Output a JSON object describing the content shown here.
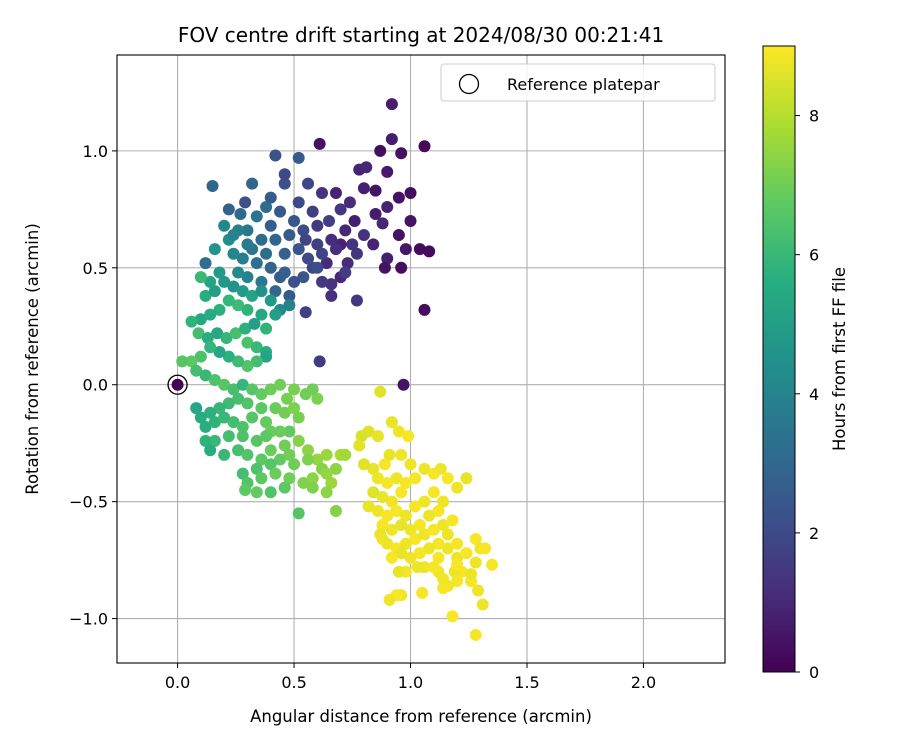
{
  "chart_data": {
    "type": "scatter",
    "title": "FOV centre drift starting at 2024/08/30 00:21:41",
    "xlabel": "Angular distance from reference (arcmin)",
    "ylabel": "Rotation from reference (arcmin)",
    "xlim": [
      -0.26,
      2.35
    ],
    "ylim": [
      -1.19,
      1.41
    ],
    "x_ticks": [
      0.0,
      0.5,
      1.0,
      1.5,
      2.0
    ],
    "x_tick_labels": [
      "0.0",
      "0.5",
      "1.0",
      "1.5",
      "2.0"
    ],
    "y_ticks": [
      -1.0,
      -0.5,
      0.0,
      0.5,
      1.0
    ],
    "y_tick_labels": [
      "−1.0",
      "−0.5",
      "0.0",
      "0.5",
      "1.0"
    ],
    "grid": true,
    "legend": {
      "placement": "top-right",
      "entries": [
        "Reference platepar"
      ]
    },
    "reference_point": {
      "x": 0.0,
      "y": 0.0
    },
    "colorbar": {
      "label": "Hours from first FF file",
      "colormap": "viridis",
      "range": [
        0,
        9
      ],
      "ticks": [
        0,
        2,
        4,
        6,
        8
      ],
      "tick_labels": [
        "0",
        "2",
        "4",
        "6",
        "8"
      ]
    },
    "points": [
      [
        0.0,
        0.0,
        0.05
      ],
      [
        0.92,
        1.2,
        0.75
      ],
      [
        0.61,
        1.03,
        0.45
      ],
      [
        0.92,
        1.05,
        0.7
      ],
      [
        1.06,
        1.02,
        0.2
      ],
      [
        0.87,
        1.0,
        0.3
      ],
      [
        0.96,
        0.99,
        0.4
      ],
      [
        0.78,
        0.92,
        0.9
      ],
      [
        0.81,
        0.93,
        1.0
      ],
      [
        0.9,
        0.91,
        0.6
      ],
      [
        1.0,
        0.82,
        0.35
      ],
      [
        0.85,
        0.83,
        0.5
      ],
      [
        0.8,
        0.84,
        0.8
      ],
      [
        0.95,
        0.8,
        0.45
      ],
      [
        0.9,
        0.76,
        0.9
      ],
      [
        0.85,
        0.73,
        0.7
      ],
      [
        0.88,
        0.69,
        1.0
      ],
      [
        1.0,
        0.7,
        0.5
      ],
      [
        0.95,
        0.64,
        0.4
      ],
      [
        0.98,
        0.58,
        0.6
      ],
      [
        1.04,
        0.58,
        0.3
      ],
      [
        1.08,
        0.57,
        0.25
      ],
      [
        0.9,
        0.54,
        0.8
      ],
      [
        0.96,
        0.5,
        0.35
      ],
      [
        0.89,
        0.5,
        0.45
      ],
      [
        1.06,
        0.32,
        0.3
      ],
      [
        0.97,
        0.0,
        0.5
      ],
      [
        0.61,
        0.1,
        1.6
      ],
      [
        0.66,
        0.38,
        1.2
      ],
      [
        0.77,
        0.36,
        1.5
      ],
      [
        0.55,
        0.31,
        1.7
      ],
      [
        0.73,
        0.52,
        1.1
      ],
      [
        0.7,
        0.6,
        0.9
      ],
      [
        0.77,
        0.56,
        1.4
      ],
      [
        0.7,
        0.46,
        1.0
      ],
      [
        0.66,
        0.43,
        1.3
      ],
      [
        0.62,
        0.44,
        1.5
      ],
      [
        0.58,
        0.5,
        1.8
      ],
      [
        0.64,
        0.52,
        1.1
      ],
      [
        0.66,
        0.62,
        1.2
      ],
      [
        0.72,
        0.66,
        1.0
      ],
      [
        0.76,
        0.7,
        0.8
      ],
      [
        0.8,
        0.64,
        1.3
      ],
      [
        0.84,
        0.6,
        0.9
      ],
      [
        0.74,
        0.78,
        1.1
      ],
      [
        0.68,
        0.82,
        0.9
      ],
      [
        0.62,
        0.82,
        1.3
      ],
      [
        0.56,
        0.86,
        1.9
      ],
      [
        0.46,
        0.86,
        2.2
      ],
      [
        0.52,
        0.78,
        2.0
      ],
      [
        0.58,
        0.74,
        1.7
      ],
      [
        0.6,
        0.68,
        1.5
      ],
      [
        0.54,
        0.66,
        2.1
      ],
      [
        0.5,
        0.7,
        2.4
      ],
      [
        0.48,
        0.64,
        2.6
      ],
      [
        0.52,
        0.58,
        2.3
      ],
      [
        0.46,
        0.56,
        2.8
      ],
      [
        0.42,
        0.62,
        3.0
      ],
      [
        0.4,
        0.68,
        2.7
      ],
      [
        0.44,
        0.74,
        2.5
      ],
      [
        0.38,
        0.76,
        3.2
      ],
      [
        0.34,
        0.72,
        3.4
      ],
      [
        0.3,
        0.66,
        3.6
      ],
      [
        0.36,
        0.62,
        3.1
      ],
      [
        0.32,
        0.58,
        3.5
      ],
      [
        0.28,
        0.54,
        3.8
      ],
      [
        0.34,
        0.52,
        3.3
      ],
      [
        0.4,
        0.5,
        2.9
      ],
      [
        0.44,
        0.46,
        2.6
      ],
      [
        0.5,
        0.44,
        2.2
      ],
      [
        0.48,
        0.38,
        2.5
      ],
      [
        0.42,
        0.4,
        3.0
      ],
      [
        0.36,
        0.44,
        3.6
      ],
      [
        0.3,
        0.46,
        4.0
      ],
      [
        0.26,
        0.48,
        4.3
      ],
      [
        0.24,
        0.56,
        4.1
      ],
      [
        0.22,
        0.62,
        4.4
      ],
      [
        0.26,
        0.66,
        3.9
      ],
      [
        0.2,
        0.68,
        4.2
      ],
      [
        0.16,
        0.58,
        4.6
      ],
      [
        0.12,
        0.52,
        3.2
      ],
      [
        0.15,
        0.85,
        3.0
      ],
      [
        0.22,
        0.75,
        2.8
      ],
      [
        0.27,
        0.73,
        3.1
      ],
      [
        0.32,
        0.86,
        2.9
      ],
      [
        0.42,
        0.98,
        2.3
      ],
      [
        0.52,
        0.97,
        2.5
      ],
      [
        0.46,
        0.9,
        2.0
      ],
      [
        0.4,
        0.8,
        2.6
      ],
      [
        0.29,
        0.78,
        2.2
      ],
      [
        0.55,
        0.62,
        1.9
      ],
      [
        0.65,
        0.7,
        1.6
      ],
      [
        0.7,
        0.75,
        1.4
      ],
      [
        0.75,
        0.6,
        1.3
      ],
      [
        0.6,
        0.6,
        1.7
      ],
      [
        0.56,
        0.54,
        2.0
      ],
      [
        0.62,
        0.56,
        1.8
      ],
      [
        0.68,
        0.58,
        1.2
      ],
      [
        0.72,
        0.48,
        1.6
      ],
      [
        0.6,
        0.5,
        2.1
      ],
      [
        0.54,
        0.46,
        2.4
      ],
      [
        0.46,
        0.48,
        2.7
      ],
      [
        0.38,
        0.56,
        3.2
      ],
      [
        0.3,
        0.6,
        3.7
      ],
      [
        0.24,
        0.64,
        4.0
      ],
      [
        0.18,
        0.48,
        4.8
      ],
      [
        0.14,
        0.44,
        5.2
      ],
      [
        0.1,
        0.46,
        6.0
      ],
      [
        0.12,
        0.38,
        5.6
      ],
      [
        0.16,
        0.4,
        5.0
      ],
      [
        0.2,
        0.44,
        4.8
      ],
      [
        0.24,
        0.42,
        4.6
      ],
      [
        0.28,
        0.4,
        4.9
      ],
      [
        0.32,
        0.38,
        5.2
      ],
      [
        0.36,
        0.4,
        4.5
      ],
      [
        0.4,
        0.36,
        4.8
      ],
      [
        0.44,
        0.32,
        4.2
      ],
      [
        0.48,
        0.34,
        4.0
      ],
      [
        0.42,
        0.3,
        5.0
      ],
      [
        0.36,
        0.3,
        5.4
      ],
      [
        0.3,
        0.32,
        5.8
      ],
      [
        0.26,
        0.34,
        6.1
      ],
      [
        0.22,
        0.36,
        5.9
      ],
      [
        0.18,
        0.32,
        5.7
      ],
      [
        0.14,
        0.3,
        5.5
      ],
      [
        0.1,
        0.28,
        5.3
      ],
      [
        0.06,
        0.27,
        5.8
      ],
      [
        0.09,
        0.22,
        6.2
      ],
      [
        0.13,
        0.2,
        5.6
      ],
      [
        0.17,
        0.22,
        5.4
      ],
      [
        0.21,
        0.2,
        5.9
      ],
      [
        0.25,
        0.22,
        6.3
      ],
      [
        0.29,
        0.24,
        5.7
      ],
      [
        0.33,
        0.26,
        5.1
      ],
      [
        0.38,
        0.24,
        5.8
      ],
      [
        0.3,
        0.18,
        6.4
      ],
      [
        0.34,
        0.16,
        6.0
      ],
      [
        0.38,
        0.14,
        5.5
      ],
      [
        0.38,
        0.12,
        5.2
      ],
      [
        0.34,
        0.1,
        6.2
      ],
      [
        0.3,
        0.08,
        6.5
      ],
      [
        0.26,
        0.1,
        6.1
      ],
      [
        0.22,
        0.12,
        5.7
      ],
      [
        0.18,
        0.14,
        5.3
      ],
      [
        0.14,
        0.16,
        5.9
      ],
      [
        0.1,
        0.12,
        6.4
      ],
      [
        0.06,
        0.1,
        6.7
      ],
      [
        0.02,
        0.1,
        6.6
      ],
      [
        0.08,
        0.06,
        6.2
      ],
      [
        0.12,
        0.04,
        6.0
      ],
      [
        0.16,
        0.02,
        6.4
      ],
      [
        0.2,
        0.0,
        6.6
      ],
      [
        0.24,
        -0.02,
        6.3
      ],
      [
        0.28,
        0.0,
        5.9
      ],
      [
        0.32,
        -0.02,
        6.6
      ],
      [
        0.36,
        -0.04,
        6.8
      ],
      [
        0.4,
        -0.02,
        6.9
      ],
      [
        0.44,
        0.0,
        7.0
      ],
      [
        0.5,
        -0.02,
        7.1
      ],
      [
        0.55,
        -0.04,
        7.0
      ],
      [
        0.6,
        -0.06,
        7.2
      ],
      [
        0.58,
        -0.02,
        7.0
      ],
      [
        0.47,
        -0.06,
        7.1
      ],
      [
        0.42,
        -0.1,
        6.9
      ],
      [
        0.36,
        -0.1,
        6.7
      ],
      [
        0.3,
        -0.08,
        6.5
      ],
      [
        0.26,
        -0.06,
        6.3
      ],
      [
        0.22,
        -0.08,
        6.1
      ],
      [
        0.18,
        -0.1,
        5.9
      ],
      [
        0.14,
        -0.12,
        5.7
      ],
      [
        0.1,
        -0.14,
        5.5
      ],
      [
        0.08,
        -0.1,
        5.3
      ],
      [
        0.12,
        -0.18,
        5.6
      ],
      [
        0.16,
        -0.16,
        5.8
      ],
      [
        0.2,
        -0.14,
        6.0
      ],
      [
        0.24,
        -0.16,
        6.2
      ],
      [
        0.28,
        -0.18,
        6.4
      ],
      [
        0.32,
        -0.14,
        6.6
      ],
      [
        0.38,
        -0.16,
        6.8
      ],
      [
        0.46,
        -0.12,
        7.0
      ],
      [
        0.5,
        -0.1,
        7.2
      ],
      [
        0.52,
        -0.14,
        7.1
      ],
      [
        0.48,
        -0.2,
        6.8
      ],
      [
        0.4,
        -0.2,
        6.9
      ],
      [
        0.34,
        -0.24,
        6.6
      ],
      [
        0.28,
        -0.22,
        6.4
      ],
      [
        0.22,
        -0.22,
        6.2
      ],
      [
        0.16,
        -0.24,
        6.0
      ],
      [
        0.12,
        -0.24,
        5.8
      ],
      [
        0.14,
        -0.28,
        5.6
      ],
      [
        0.2,
        -0.3,
        6.0
      ],
      [
        0.26,
        -0.28,
        6.3
      ],
      [
        0.3,
        -0.3,
        6.5
      ],
      [
        0.36,
        -0.32,
        6.7
      ],
      [
        0.4,
        -0.28,
        6.9
      ],
      [
        0.46,
        -0.26,
        7.0
      ],
      [
        0.52,
        -0.24,
        7.3
      ],
      [
        0.56,
        -0.28,
        7.4
      ],
      [
        0.6,
        -0.32,
        7.5
      ],
      [
        0.64,
        -0.3,
        7.6
      ],
      [
        0.7,
        -0.3,
        7.8
      ],
      [
        0.72,
        -0.3,
        7.7
      ],
      [
        0.68,
        -0.36,
        7.4
      ],
      [
        0.62,
        -0.36,
        7.3
      ],
      [
        0.56,
        -0.32,
        7.2
      ],
      [
        0.5,
        -0.34,
        7.0
      ],
      [
        0.44,
        -0.32,
        6.8
      ],
      [
        0.4,
        -0.34,
        6.6
      ],
      [
        0.34,
        -0.36,
        6.4
      ],
      [
        0.28,
        -0.38,
        6.2
      ],
      [
        0.3,
        -0.42,
        6.5
      ],
      [
        0.36,
        -0.4,
        6.7
      ],
      [
        0.42,
        -0.38,
        6.9
      ],
      [
        0.48,
        -0.4,
        7.0
      ],
      [
        0.54,
        -0.42,
        7.2
      ],
      [
        0.58,
        -0.4,
        7.4
      ],
      [
        0.64,
        -0.38,
        7.5
      ],
      [
        0.66,
        -0.42,
        7.6
      ],
      [
        0.64,
        -0.46,
        7.4
      ],
      [
        0.58,
        -0.44,
        7.2
      ],
      [
        0.46,
        -0.44,
        6.7
      ],
      [
        0.4,
        -0.46,
        6.5
      ],
      [
        0.34,
        -0.46,
        6.8
      ],
      [
        0.29,
        -0.45,
        6.7
      ],
      [
        0.52,
        -0.55,
        6.6
      ],
      [
        0.68,
        -0.54,
        7.3
      ],
      [
        0.44,
        -0.2,
        6.9
      ],
      [
        0.38,
        -0.22,
        6.7
      ],
      [
        0.48,
        -0.3,
        7.0
      ],
      [
        0.87,
        -0.03,
        8.6
      ],
      [
        0.92,
        -0.16,
        8.7
      ],
      [
        0.95,
        -0.2,
        8.8
      ],
      [
        0.86,
        -0.22,
        8.7
      ],
      [
        0.82,
        -0.2,
        8.6
      ],
      [
        0.79,
        -0.22,
        8.5
      ],
      [
        0.99,
        -0.22,
        8.9
      ],
      [
        0.78,
        -0.26,
        8.6
      ],
      [
        0.91,
        -0.3,
        8.7
      ],
      [
        0.96,
        -0.3,
        8.8
      ],
      [
        0.89,
        -0.34,
        8.9
      ],
      [
        0.84,
        -0.36,
        8.7
      ],
      [
        0.8,
        -0.34,
        8.6
      ],
      [
        0.86,
        -0.4,
        8.8
      ],
      [
        0.9,
        -0.42,
        8.9
      ],
      [
        0.94,
        -0.4,
        8.8
      ],
      [
        0.98,
        -0.42,
        8.9
      ],
      [
        1.02,
        -0.4,
        8.9
      ],
      [
        1.06,
        -0.36,
        8.8
      ],
      [
        1.1,
        -0.38,
        8.9
      ],
      [
        1.13,
        -0.36,
        8.8
      ],
      [
        1.16,
        -0.4,
        8.9
      ],
      [
        1.2,
        -0.44,
        8.8
      ],
      [
        1.24,
        -0.4,
        8.7
      ],
      [
        1.0,
        -0.34,
        8.8
      ],
      [
        0.96,
        -0.46,
        8.9
      ],
      [
        0.92,
        -0.5,
        8.8
      ],
      [
        0.88,
        -0.48,
        8.7
      ],
      [
        0.84,
        -0.46,
        8.6
      ],
      [
        0.82,
        -0.52,
        8.7
      ],
      [
        0.86,
        -0.54,
        8.8
      ],
      [
        0.9,
        -0.56,
        8.9
      ],
      [
        0.94,
        -0.54,
        8.9
      ],
      [
        0.98,
        -0.56,
        8.8
      ],
      [
        1.02,
        -0.52,
        8.9
      ],
      [
        1.06,
        -0.5,
        8.8
      ],
      [
        1.1,
        -0.46,
        8.9
      ],
      [
        1.14,
        -0.5,
        8.8
      ],
      [
        1.12,
        -0.54,
        8.9
      ],
      [
        1.08,
        -0.56,
        8.8
      ],
      [
        1.04,
        -0.6,
        8.9
      ],
      [
        1.0,
        -0.62,
        8.8
      ],
      [
        0.96,
        -0.6,
        8.7
      ],
      [
        0.92,
        -0.62,
        8.8
      ],
      [
        0.88,
        -0.6,
        8.9
      ],
      [
        0.87,
        -0.64,
        8.7
      ],
      [
        0.9,
        -0.68,
        8.8
      ],
      [
        0.94,
        -0.7,
        8.9
      ],
      [
        0.98,
        -0.68,
        8.8
      ],
      [
        1.02,
        -0.66,
        8.9
      ],
      [
        1.06,
        -0.64,
        8.8
      ],
      [
        1.1,
        -0.62,
        8.9
      ],
      [
        1.14,
        -0.6,
        8.8
      ],
      [
        1.18,
        -0.58,
        8.9
      ],
      [
        1.16,
        -0.64,
        8.8
      ],
      [
        1.12,
        -0.68,
        8.9
      ],
      [
        1.08,
        -0.7,
        8.8
      ],
      [
        1.04,
        -0.72,
        8.9
      ],
      [
        1.0,
        -0.74,
        8.8
      ],
      [
        0.96,
        -0.72,
        8.7
      ],
      [
        0.92,
        -0.74,
        8.9
      ],
      [
        0.88,
        -0.66,
        8.8
      ],
      [
        1.06,
        -0.78,
        8.8
      ],
      [
        1.12,
        -0.74,
        8.9
      ],
      [
        1.16,
        -0.7,
        8.8
      ],
      [
        1.2,
        -0.68,
        8.9
      ],
      [
        1.2,
        -0.74,
        8.8
      ],
      [
        1.24,
        -0.72,
        8.9
      ],
      [
        1.28,
        -0.66,
        8.9
      ],
      [
        1.3,
        -0.7,
        8.8
      ],
      [
        1.32,
        -0.7,
        8.9
      ],
      [
        1.35,
        -0.77,
        8.9
      ],
      [
        1.28,
        -0.76,
        8.8
      ],
      [
        1.22,
        -0.8,
        8.9
      ],
      [
        1.19,
        -0.8,
        8.8
      ],
      [
        1.26,
        -0.84,
        8.9
      ],
      [
        1.29,
        -0.88,
        8.8
      ],
      [
        1.2,
        -0.84,
        8.9
      ],
      [
        1.16,
        -0.86,
        8.8
      ],
      [
        1.14,
        -0.87,
        8.9
      ],
      [
        1.12,
        -0.8,
        8.8
      ],
      [
        1.1,
        -0.78,
        8.9
      ],
      [
        1.03,
        -0.78,
        8.8
      ],
      [
        0.98,
        -0.8,
        8.9
      ],
      [
        0.95,
        -0.8,
        8.7
      ],
      [
        1.05,
        -0.89,
        8.9
      ],
      [
        0.96,
        -0.9,
        8.8
      ],
      [
        0.94,
        -0.9,
        8.9
      ],
      [
        0.91,
        -0.92,
        8.8
      ],
      [
        1.18,
        -0.99,
        8.9
      ],
      [
        1.31,
        -0.94,
        8.8
      ],
      [
        1.28,
        -1.07,
        8.9
      ],
      [
        1.26,
        -0.81,
        8.8
      ],
      [
        1.2,
        -0.77,
        8.9
      ],
      [
        1.14,
        -0.83,
        8.8
      ]
    ]
  }
}
